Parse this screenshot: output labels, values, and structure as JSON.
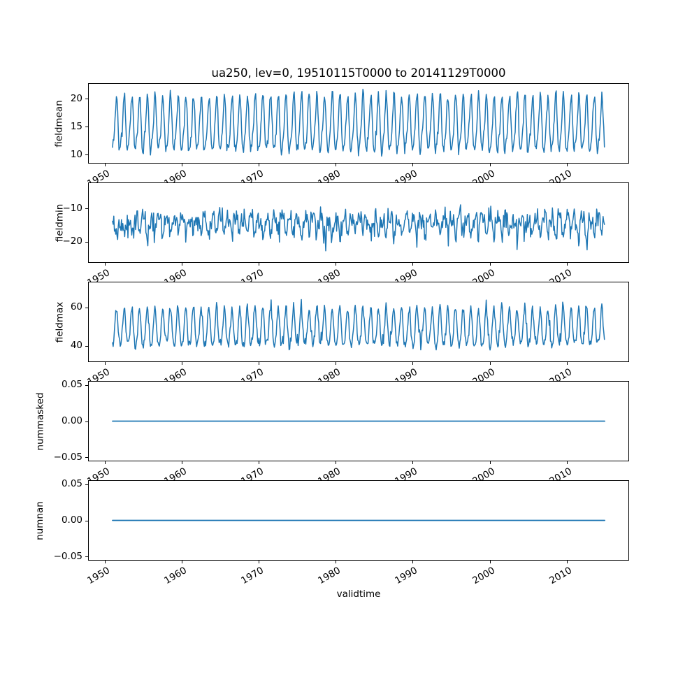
{
  "figure": {
    "background": "#ffffff"
  },
  "chart_data": {
    "type": "line",
    "title": "ua250, lev=0, 19510115T0000 to 20141129T0000",
    "xlabel": "validtime",
    "line_color": "#1f77b4",
    "spine_color": "#000000",
    "grid": "off",
    "legend": "none",
    "x_axis": {
      "range": [
        1947.87,
        2018.08
      ],
      "data_range": [
        1951.042,
        2014.917
      ],
      "cadence": "monthly",
      "points_per_series": 767,
      "tick_rotation_deg": 30,
      "ticks": [
        {
          "label": "1950",
          "value": 1950
        },
        {
          "label": "1960",
          "value": 1960
        },
        {
          "label": "1970",
          "value": 1970
        },
        {
          "label": "1980",
          "value": 1980
        },
        {
          "label": "1990",
          "value": 1990
        },
        {
          "label": "2000",
          "value": 2000
        },
        {
          "label": "2010",
          "value": 2010
        }
      ]
    },
    "subplots": [
      {
        "ylabel": "fieldmean",
        "ylim": [
          8.375,
          22.75
        ],
        "yticks": [
          {
            "label": "10",
            "value": 10
          },
          {
            "label": "15",
            "value": 15
          },
          {
            "label": "20",
            "value": 20
          }
        ],
        "series": {
          "kind": "seasonal",
          "base": 15.1,
          "amp": 4.7,
          "peak": 0.54,
          "amp2": 1.1,
          "peak2": 0.1,
          "noise": 1.25,
          "spike_prob": 0.0,
          "spike_mag": 0,
          "seed": 11
        }
      },
      {
        "ylabel": "fieldmin",
        "ylim": [
          -26.35,
          -2.24
        ],
        "yticks": [
          {
            "label": "−20",
            "value": -20
          },
          {
            "label": "−10",
            "value": -10
          }
        ],
        "series": {
          "kind": "seasonal",
          "base": -14.6,
          "amp": 2.3,
          "peak": 0.06,
          "amp2": 1.0,
          "peak2": 0.3,
          "noise": 4.0,
          "spike_prob": 0.04,
          "spike_mag": -3,
          "seed": 22
        }
      },
      {
        "ylabel": "fieldmax",
        "ylim": [
          31.6,
          73.45
        ],
        "yticks": [
          {
            "label": "40",
            "value": 40
          },
          {
            "label": "60",
            "value": 60
          }
        ],
        "series": {
          "kind": "seasonal",
          "base": 48.8,
          "amp": 9.6,
          "peak": 0.54,
          "amp2": 1.6,
          "peak2": 0.05,
          "noise": 3.2,
          "spike_prob": 0.05,
          "spike_mag": 3,
          "seed": 33
        }
      },
      {
        "ylabel": "nummasked",
        "ylim": [
          -0.0556,
          0.0556
        ],
        "yticks": [
          {
            "label": "−0.05",
            "value": -0.05
          },
          {
            "label": "0.00",
            "value": 0
          },
          {
            "label": "0.05",
            "value": 0.05
          }
        ],
        "series": {
          "kind": "constant",
          "value": 0
        }
      },
      {
        "ylabel": "numnan",
        "ylim": [
          -0.0556,
          0.0556
        ],
        "yticks": [
          {
            "label": "−0.05",
            "value": -0.05
          },
          {
            "label": "0.00",
            "value": 0
          },
          {
            "label": "0.05",
            "value": 0.05
          }
        ],
        "series": {
          "kind": "constant",
          "value": 0
        }
      }
    ]
  }
}
